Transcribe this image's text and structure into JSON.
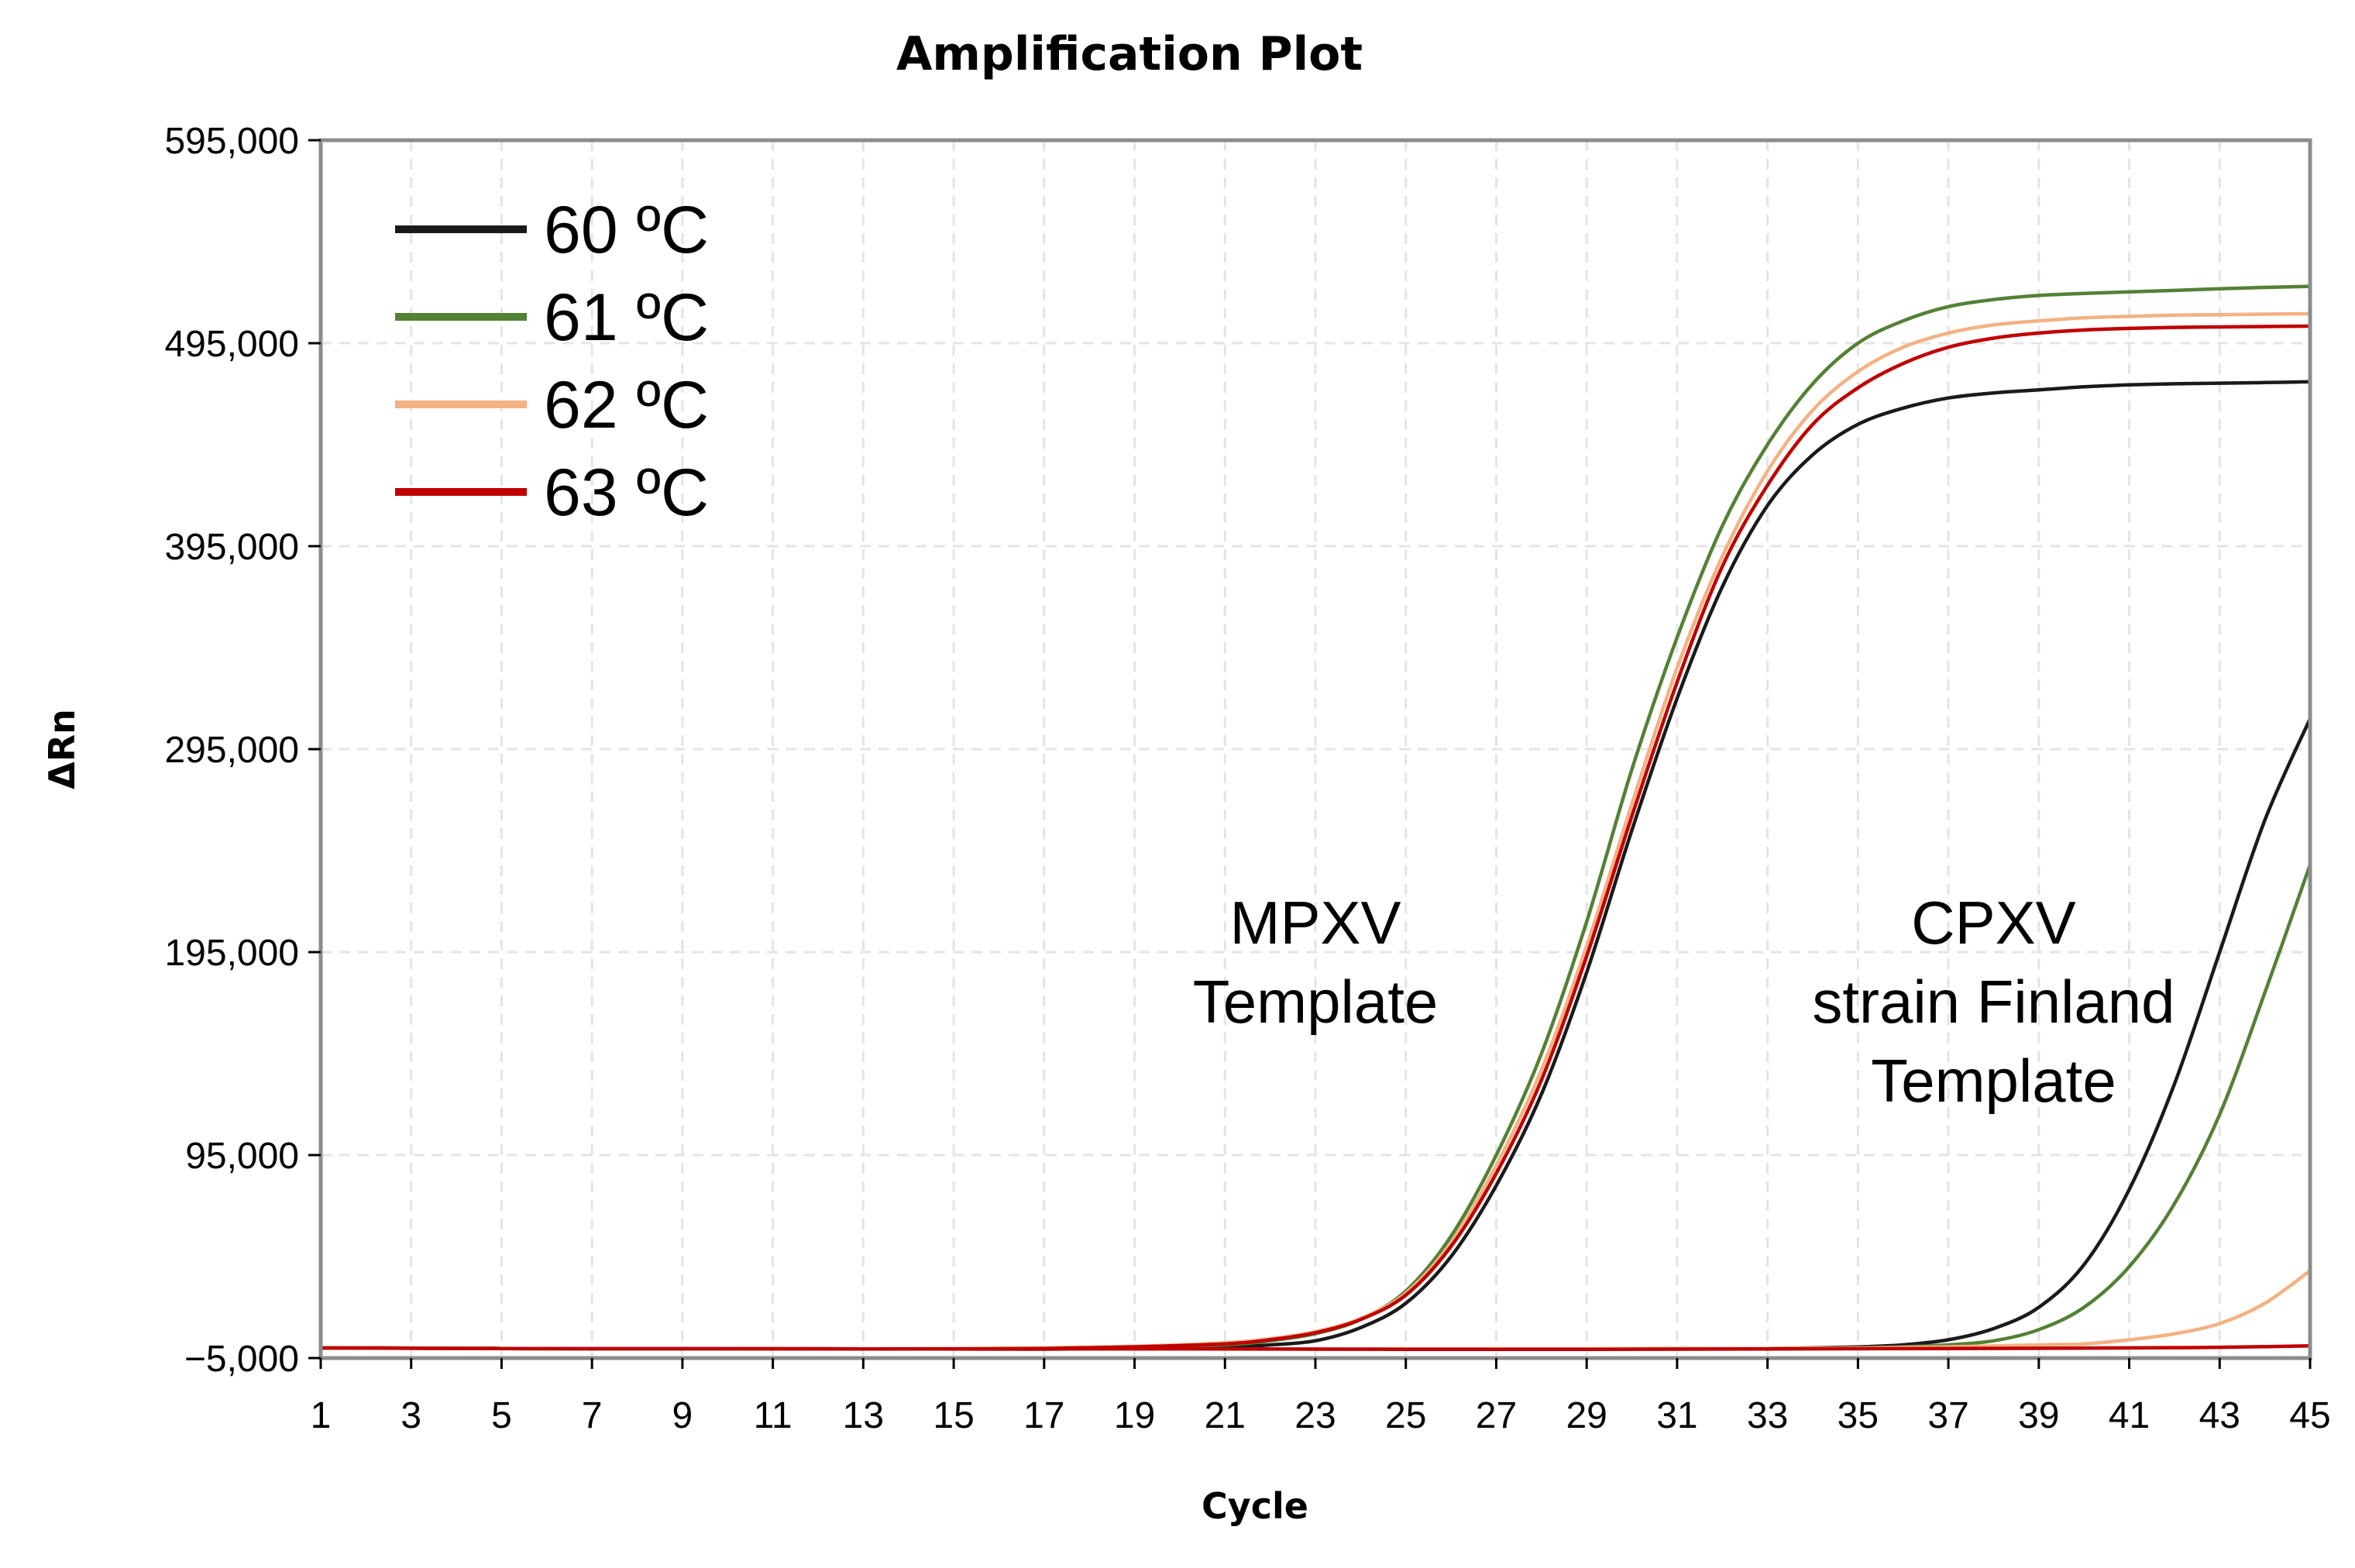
{
  "chart_data": {
    "type": "line",
    "title": "Amplification Plot",
    "xlabel": "Cycle",
    "ylabel": "ΔRn",
    "xlim": [
      1,
      45
    ],
    "ylim": [
      -5000,
      595000
    ],
    "x_ticks": [
      1,
      3,
      5,
      7,
      9,
      11,
      13,
      15,
      17,
      19,
      21,
      23,
      25,
      27,
      29,
      31,
      33,
      35,
      37,
      39,
      41,
      43,
      45
    ],
    "y_ticks": [
      -5000,
      95000,
      195000,
      295000,
      395000,
      495000,
      595000
    ],
    "y_tick_labels": [
      "−5,000",
      "95,000",
      "195,000",
      "295,000",
      "395,000",
      "495,000",
      "595,000"
    ],
    "grid": true,
    "legend_position": "top-left",
    "legend": [
      {
        "label": "60 ºC",
        "color": "#1a1a1a"
      },
      {
        "label": "61 ºC",
        "color": "#538135"
      },
      {
        "label": "62 ºC",
        "color": "#f4b183"
      },
      {
        "label": "63 ºC",
        "color": "#c00000"
      }
    ],
    "annotations": [
      {
        "lines": [
          "MPXV",
          "Template"
        ],
        "x": 23,
        "y": 208000
      },
      {
        "lines": [
          "CPXV",
          "strain Finland",
          "Template"
        ],
        "x": 38,
        "y": 208000
      }
    ],
    "series": [
      {
        "name": "60 ºC MPXV",
        "color": "#1a1a1a",
        "x": [
          1,
          3,
          5,
          7,
          9,
          11,
          13,
          15,
          17,
          19,
          21,
          22,
          23,
          24,
          25,
          26,
          27,
          28,
          29,
          30,
          31,
          32,
          33,
          34,
          35,
          36,
          37,
          38,
          39,
          40,
          41,
          42,
          43,
          44,
          45
        ],
        "y": [
          0,
          -100,
          -300,
          -400,
          -400,
          -400,
          -500,
          -500,
          -600,
          -300,
          300,
          1500,
          3500,
          10000,
          22000,
          45000,
          80000,
          125000,
          185000,
          255000,
          320000,
          375000,
          415000,
          440000,
          455000,
          463000,
          468000,
          470500,
          472000,
          473500,
          474500,
          475000,
          475300,
          475600,
          476000
        ]
      },
      {
        "name": "61 ºC MPXV",
        "color": "#538135",
        "x": [
          1,
          3,
          5,
          7,
          9,
          11,
          13,
          15,
          17,
          19,
          21,
          22,
          23,
          24,
          25,
          26,
          27,
          28,
          29,
          30,
          31,
          32,
          33,
          34,
          35,
          36,
          37,
          38,
          39,
          40,
          41,
          42,
          43,
          44,
          45
        ],
        "y": [
          0,
          -100,
          -300,
          -400,
          -400,
          -400,
          -500,
          -400,
          -200,
          200,
          1500,
          3500,
          7000,
          14000,
          28000,
          55000,
          95000,
          145000,
          210000,
          285000,
          350000,
          405000,
          445000,
          475000,
          495000,
          506000,
          513000,
          516500,
          518500,
          519500,
          520300,
          521000,
          521800,
          522500,
          523000
        ]
      },
      {
        "name": "62 ºC MPXV",
        "color": "#f4b183",
        "x": [
          1,
          3,
          5,
          7,
          9,
          11,
          13,
          15,
          17,
          19,
          21,
          22,
          23,
          24,
          25,
          26,
          27,
          28,
          29,
          30,
          31,
          32,
          33,
          34,
          35,
          36,
          37,
          38,
          39,
          40,
          41,
          42,
          43,
          44,
          45
        ],
        "y": [
          0,
          -100,
          -300,
          -400,
          -400,
          -400,
          -500,
          -300,
          0,
          800,
          2500,
          4500,
          8000,
          14500,
          27000,
          52000,
          90000,
          137000,
          198000,
          268000,
          335000,
          390000,
          432000,
          462000,
          481000,
          493000,
          500000,
          504000,
          506000,
          507500,
          508200,
          508800,
          509000,
          509300,
          509500
        ]
      },
      {
        "name": "63 ºC MPXV",
        "color": "#c00000",
        "x": [
          1,
          3,
          5,
          7,
          9,
          11,
          13,
          15,
          17,
          19,
          21,
          22,
          23,
          24,
          25,
          26,
          27,
          28,
          29,
          30,
          31,
          32,
          33,
          34,
          35,
          36,
          37,
          38,
          39,
          40,
          41,
          42,
          43,
          44,
          45
        ],
        "y": [
          0,
          -100,
          -300,
          -400,
          -400,
          -400,
          -500,
          -500,
          -300,
          500,
          2000,
          4000,
          7500,
          14000,
          26000,
          50000,
          86000,
          132000,
          193000,
          262000,
          328000,
          385000,
          425000,
          455000,
          473000,
          485000,
          493000,
          497500,
          500000,
          501500,
          502300,
          502800,
          503000,
          503200,
          503400
        ]
      },
      {
        "name": "60 ºC CPXV",
        "color": "#1a1a1a",
        "x": [
          1,
          5,
          9,
          13,
          17,
          21,
          25,
          29,
          33,
          35,
          36,
          37,
          38,
          39,
          40,
          41,
          42,
          43,
          44,
          45
        ],
        "y": [
          0,
          -300,
          -400,
          -500,
          -500,
          -500,
          -500,
          -500,
          -300,
          500,
          1500,
          4000,
          9500,
          20000,
          41000,
          78000,
          130000,
          195000,
          260000,
          310000
        ]
      },
      {
        "name": "61 ºC CPXV",
        "color": "#538135",
        "x": [
          1,
          5,
          9,
          13,
          17,
          21,
          25,
          29,
          33,
          35,
          36,
          37,
          38,
          39,
          40,
          41,
          42,
          43,
          44,
          45
        ],
        "y": [
          0,
          -300,
          -400,
          -500,
          -500,
          -500,
          -500,
          -500,
          -300,
          0,
          500,
          1500,
          3500,
          9000,
          20000,
          40000,
          71000,
          115000,
          175000,
          238000
        ]
      },
      {
        "name": "62 ºC CPXV",
        "color": "#f4b183",
        "x": [
          1,
          5,
          9,
          13,
          17,
          21,
          25,
          29,
          33,
          35,
          37,
          39,
          40,
          41,
          42,
          43,
          44,
          45
        ],
        "y": [
          0,
          -300,
          -400,
          -500,
          -500,
          -500,
          -500,
          -500,
          -300,
          0,
          500,
          1500,
          2000,
          4000,
          7000,
          12000,
          22000,
          38000
        ]
      },
      {
        "name": "63 ºC CPXV",
        "color": "#c00000",
        "x": [
          1,
          5,
          9,
          13,
          17,
          21,
          25,
          29,
          33,
          37,
          41,
          43,
          45
        ],
        "y": [
          0,
          -300,
          -400,
          -500,
          -500,
          -500,
          -700,
          -700,
          -500,
          -300,
          0,
          300,
          1000
        ]
      }
    ]
  }
}
